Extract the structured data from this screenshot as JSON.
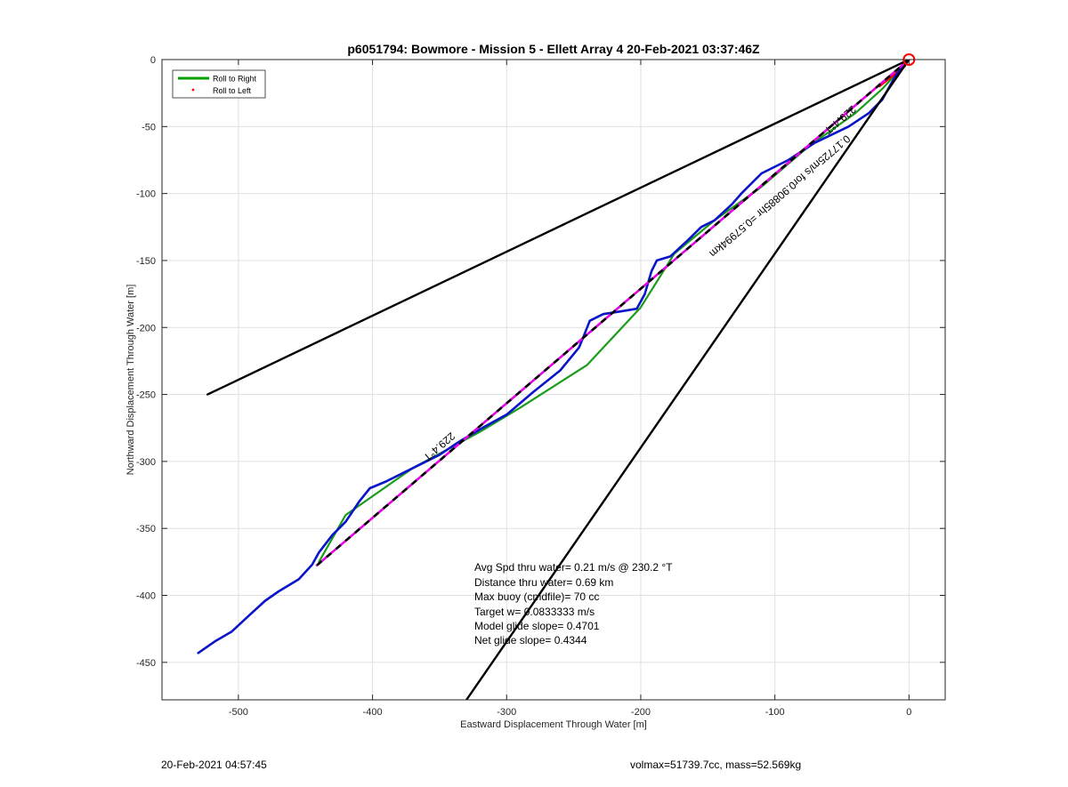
{
  "footer": {
    "left": "20-Feb-2021 04:57:45",
    "right": "volmax=51739.7cc, mass=52.569kg"
  },
  "chart_data": {
    "type": "line",
    "title": "p6051794: Bowmore - Mission 5 - Ellett Array 4 20-Feb-2021 03:37:46Z",
    "xlabel": "Eastward Displacement Through Water [m]",
    "ylabel": "Northward Displacement Through Water [m]",
    "xlim": [
      -557,
      27
    ],
    "ylim": [
      -478,
      0
    ],
    "xticks": [
      -500,
      -400,
      -300,
      -200,
      -100,
      0
    ],
    "yticks": [
      0,
      -50,
      -100,
      -150,
      -200,
      -250,
      -300,
      -350,
      -400,
      -450
    ],
    "grid": true,
    "legend": {
      "position": "top-left",
      "entries": [
        {
          "label": "Roll to Right",
          "color": "#00a000",
          "style": "line"
        },
        {
          "label": "Roll to Left",
          "color": "#ff0000",
          "style": "dot"
        }
      ]
    },
    "series": [
      {
        "name": "Roll to Right",
        "color": "#1a9c1a",
        "points": [
          [
            0,
            0
          ],
          [
            -20,
            -22
          ],
          [
            -40,
            -40
          ],
          [
            -75,
            -65
          ],
          [
            -110,
            -95
          ],
          [
            -145,
            -120
          ],
          [
            -175,
            -145
          ],
          [
            -200,
            -185
          ],
          [
            -240,
            -228
          ],
          [
            -290,
            -260
          ],
          [
            -320,
            -278
          ],
          [
            -370,
            -305
          ],
          [
            -420,
            -340
          ],
          [
            -440,
            -375
          ]
        ]
      },
      {
        "name": "Roll to Left",
        "color": "#ff0000",
        "points": [
          [
            -3,
            -5
          ],
          [
            -22,
            -20
          ]
        ]
      },
      {
        "color": "#0a14c8",
        "points": [
          [
            0,
            0
          ],
          [
            -10,
            -12
          ],
          [
            -20,
            -30
          ],
          [
            -30,
            -40
          ],
          [
            -45,
            -50
          ],
          [
            -70,
            -62
          ],
          [
            -90,
            -75
          ],
          [
            -110,
            -85
          ],
          [
            -125,
            -100
          ],
          [
            -132,
            -108
          ],
          [
            -145,
            -120
          ],
          [
            -155,
            -125
          ],
          [
            -165,
            -135
          ],
          [
            -178,
            -147
          ],
          [
            -188,
            -150
          ],
          [
            -192,
            -158
          ],
          [
            -197,
            -175
          ],
          [
            -203,
            -186
          ],
          [
            -215,
            -188
          ],
          [
            -228,
            -190
          ],
          [
            -238,
            -195
          ],
          [
            -242,
            -205
          ],
          [
            -246,
            -215
          ],
          [
            -260,
            -232
          ],
          [
            -280,
            -248
          ],
          [
            -300,
            -265
          ],
          [
            -318,
            -275
          ],
          [
            -335,
            -285
          ],
          [
            -350,
            -295
          ],
          [
            -370,
            -305
          ],
          [
            -390,
            -315
          ],
          [
            -402,
            -320
          ],
          [
            -410,
            -330
          ],
          [
            -420,
            -345
          ],
          [
            -430,
            -355
          ],
          [
            -440,
            -368
          ],
          [
            -445,
            -377
          ],
          [
            -455,
            -388
          ],
          [
            -470,
            -397
          ],
          [
            -480,
            -404
          ],
          [
            -492,
            -415
          ],
          [
            -505,
            -427
          ],
          [
            -517,
            -434
          ],
          [
            -530,
            -443
          ]
        ]
      },
      {
        "color": "#000000",
        "style": "dashed-magenta",
        "points": [
          [
            0,
            0
          ],
          [
            -442,
            -378
          ]
        ]
      },
      {
        "color": "#000000",
        "points": [
          [
            0,
            0
          ],
          [
            -523,
            -250
          ]
        ]
      },
      {
        "color": "#000000",
        "points": [
          [
            0,
            0
          ],
          [
            -330,
            -478
          ]
        ]
      }
    ],
    "markers": [
      {
        "type": "circle",
        "x": 0,
        "y": 0,
        "color": "#ff0000"
      }
    ],
    "annotations": [
      {
        "text": "229.4°T",
        "x": -53,
        "y": -43,
        "rotate": 139.4
      },
      {
        "text": "0.17725m/s for0.90885hr =0.57994km",
        "x": -98,
        "y": -100,
        "rotate": 139.4
      },
      {
        "text": "229.4°T",
        "x": -352,
        "y": -287,
        "rotate": 139.4
      }
    ],
    "stats": [
      "Avg Spd thru water=  0.21 m/s @ 230.2 °T",
      "Distance thru water=  0.69 km",
      "Max buoy (cmdfile)= 70 cc",
      "Target w= 0.0833333 m/s",
      "Model glide slope= 0.4701",
      "Net glide slope= 0.4344"
    ]
  }
}
